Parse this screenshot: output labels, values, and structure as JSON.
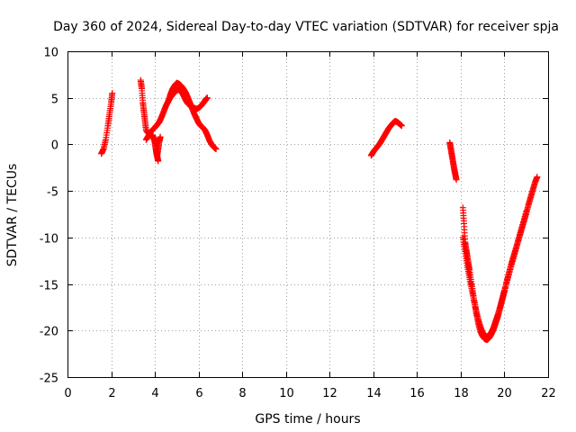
{
  "chart_data": {
    "type": "scatter",
    "title": "Day 360 of 2024, Sidereal Day-to-day VTEC variation (SDTVAR) for receiver spja",
    "xlabel": "GPS time / hours",
    "ylabel": "SDTVAR / TECUs",
    "xlim": [
      0,
      22
    ],
    "ylim": [
      -25,
      10
    ],
    "xticks": [
      0,
      2,
      4,
      6,
      8,
      10,
      12,
      14,
      16,
      18,
      20,
      22
    ],
    "yticks": [
      -25,
      -20,
      -15,
      -10,
      -5,
      0,
      5,
      10
    ],
    "grid": true,
    "marker": "+",
    "series": [
      {
        "name": "SDTVAR",
        "color": "#ff0000",
        "segments": [
          {
            "x": [
              1.55,
              1.65,
              1.75,
              1.85,
              1.92,
              2.0,
              2.05
            ],
            "y": [
              -1.0,
              -0.5,
              0.5,
              2.0,
              3.2,
              4.5,
              5.5
            ]
          },
          {
            "x": [
              3.35,
              3.4,
              3.45,
              3.5,
              3.55,
              3.6,
              3.7,
              3.8,
              3.9,
              4.0,
              4.05,
              4.1,
              4.15
            ],
            "y": [
              6.9,
              6.0,
              4.5,
              3.5,
              2.5,
              1.5,
              1.2,
              1.0,
              0.9,
              0.4,
              -0.5,
              -1.2,
              -1.8
            ]
          },
          {
            "x": [
              3.6,
              3.7,
              3.8,
              3.9,
              4.0,
              4.1,
              4.2,
              4.3,
              4.4,
              4.5,
              4.6,
              4.7,
              4.8,
              4.9,
              5.0,
              5.1,
              5.2,
              5.3,
              5.4,
              5.5,
              5.6,
              5.7,
              5.8,
              5.9,
              6.0,
              6.1,
              6.2,
              6.3,
              6.35,
              6.4
            ],
            "y": [
              0.5,
              0.9,
              1.3,
              1.6,
              1.8,
              2.1,
              2.4,
              2.9,
              3.5,
              4.1,
              4.6,
              5.0,
              5.3,
              5.6,
              5.8,
              5.9,
              5.7,
              5.3,
              4.8,
              4.4,
              4.2,
              4.0,
              3.9,
              3.8,
              3.9,
              4.1,
              4.4,
              4.7,
              4.9,
              5.0
            ]
          },
          {
            "x": [
              4.6,
              4.7,
              4.8,
              4.9,
              5.0,
              5.1,
              5.2,
              5.3,
              5.4,
              5.5,
              5.6,
              5.7,
              5.8,
              5.9,
              6.0,
              6.1,
              6.2,
              6.3,
              6.4,
              6.5,
              6.6,
              6.7,
              6.8
            ],
            "y": [
              4.5,
              5.3,
              5.9,
              6.3,
              6.6,
              6.5,
              6.3,
              6.0,
              5.6,
              5.1,
              4.5,
              3.9,
              3.3,
              2.8,
              2.3,
              2.0,
              1.8,
              1.5,
              1.0,
              0.4,
              0.0,
              -0.3,
              -0.5
            ]
          },
          {
            "x": [
              3.9,
              4.0,
              4.05,
              4.1,
              4.15,
              4.2,
              4.25
            ],
            "y": [
              1.0,
              0.2,
              -0.6,
              -1.3,
              -0.5,
              0.3,
              0.8
            ]
          },
          {
            "x": [
              13.9,
              14.0,
              14.1,
              14.2,
              14.3,
              14.4,
              14.5,
              14.6,
              14.7,
              14.8,
              14.9,
              15.0,
              15.1,
              15.2,
              15.3
            ],
            "y": [
              -1.2,
              -0.8,
              -0.5,
              -0.2,
              0.1,
              0.5,
              0.9,
              1.3,
              1.7,
              2.0,
              2.3,
              2.5,
              2.4,
              2.2,
              2.0
            ]
          },
          {
            "x": [
              17.5,
              17.55,
              17.6,
              17.65,
              17.7,
              17.75,
              17.8
            ],
            "y": [
              0.2,
              -0.5,
              -1.2,
              -1.9,
              -2.6,
              -3.2,
              -3.8
            ]
          },
          {
            "x": [
              18.1,
              18.15,
              18.2,
              18.25,
              18.3,
              18.35,
              18.4,
              18.5,
              18.6,
              18.7,
              18.8,
              18.9,
              19.0,
              19.1,
              19.2,
              19.3,
              19.4,
              19.5,
              19.6,
              19.7,
              19.8,
              19.9,
              20.0,
              20.1,
              20.2,
              20.3,
              20.4,
              20.5,
              20.6,
              20.7,
              20.8,
              20.9,
              21.0,
              21.1,
              21.2,
              21.3,
              21.4,
              21.5
            ],
            "y": [
              -6.8,
              -8.5,
              -10.5,
              -11.3,
              -12.0,
              -12.8,
              -13.5,
              -15.0,
              -16.5,
              -18.0,
              -19.2,
              -20.1,
              -20.6,
              -20.9,
              -21.0,
              -20.8,
              -20.4,
              -19.9,
              -19.2,
              -18.5,
              -17.6,
              -16.7,
              -15.8,
              -14.8,
              -13.9,
              -13.0,
              -12.2,
              -11.4,
              -10.6,
              -9.8,
              -9.0,
              -8.2,
              -7.4,
              -6.5,
              -5.7,
              -4.9,
              -4.1,
              -3.5
            ]
          },
          {
            "x": [
              18.1,
              18.2,
              18.3,
              18.4,
              18.5,
              18.6,
              18.7,
              18.8,
              18.9,
              19.0,
              19.1,
              19.2,
              19.3,
              19.4,
              19.5,
              19.6,
              19.7,
              19.8,
              19.9,
              20.0,
              20.2,
              20.4,
              20.6,
              20.8,
              21.0
            ],
            "y": [
              -10.0,
              -11.5,
              -13.0,
              -14.3,
              -15.5,
              -16.7,
              -17.8,
              -18.8,
              -19.6,
              -20.2,
              -20.5,
              -20.7,
              -20.5,
              -20.2,
              -19.7,
              -19.0,
              -18.3,
              -17.5,
              -16.6,
              -15.7,
              -14.0,
              -12.3,
              -10.6,
              -8.9,
              -7.2
            ]
          }
        ]
      }
    ]
  }
}
